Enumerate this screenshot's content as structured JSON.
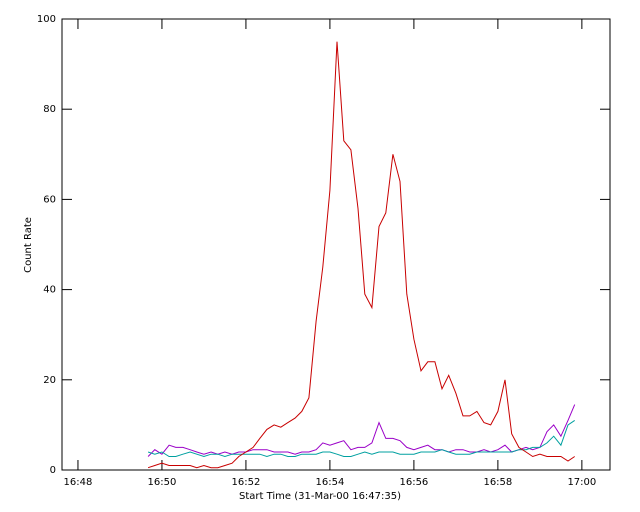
{
  "chart_data": {
    "type": "line",
    "xlabel": "Start Time (31-Mar-00 16:47:35)",
    "ylabel": "Count Rate",
    "x": [
      1.67,
      1.83,
      2,
      2.17,
      2.33,
      2.5,
      2.67,
      2.83,
      3,
      3.17,
      3.33,
      3.5,
      3.67,
      3.83,
      4,
      4.17,
      4.33,
      4.5,
      4.67,
      4.83,
      5,
      5.17,
      5.33,
      5.5,
      5.67,
      5.83,
      6,
      6.17,
      6.33,
      6.5,
      6.67,
      6.83,
      7,
      7.17,
      7.33,
      7.5,
      7.67,
      7.83,
      8,
      8.17,
      8.33,
      8.5,
      8.67,
      8.83,
      9,
      9.17,
      9.33,
      9.5,
      9.67,
      9.83,
      10,
      10.17,
      10.33,
      10.5,
      10.67,
      10.83,
      11,
      11.17,
      11.33,
      11.5,
      11.67,
      11.83
    ],
    "series": [
      {
        "color": "#9a00c8",
        "values": [
          3,
          4.5,
          3.5,
          5.5,
          5,
          5,
          4.5,
          4,
          3.5,
          4,
          3.5,
          4,
          3.5,
          4,
          4,
          4.5,
          4.5,
          4.5,
          4,
          4,
          4,
          3.5,
          4,
          4,
          4.5,
          6,
          5.5,
          6,
          6.5,
          4.5,
          5,
          5,
          6,
          10.5,
          7,
          7,
          6.5,
          5,
          4.5,
          5,
          5.5,
          4.5,
          4.5,
          4,
          4.5,
          4.5,
          4,
          4,
          4.5,
          4,
          4.5,
          5.5,
          4,
          4.5,
          5,
          4.5,
          5,
          8.5,
          10,
          7.5,
          11,
          14.5
        ]
      },
      {
        "color": "#00a0a0",
        "values": [
          4,
          3.5,
          4,
          3,
          3,
          3.5,
          4,
          3.5,
          3,
          3.5,
          3.5,
          3,
          3.5,
          3.5,
          3.5,
          3.5,
          3.5,
          3,
          3.5,
          3.5,
          3,
          3,
          3.5,
          3.5,
          3.5,
          4,
          4,
          3.5,
          3,
          3,
          3.5,
          4,
          3.5,
          4,
          4,
          4,
          3.5,
          3.5,
          3.5,
          4,
          4,
          4,
          4.5,
          4,
          3.5,
          3.5,
          3.5,
          4,
          4,
          4,
          4,
          4,
          4,
          4.5,
          4.5,
          5,
          5,
          6,
          7.5,
          5.5,
          10,
          11
        ]
      },
      {
        "color": "#c80000",
        "values": [
          0.5,
          1,
          1.5,
          1,
          1,
          1,
          1,
          0.5,
          1,
          0.5,
          0.5,
          1,
          1.5,
          3,
          4,
          5,
          7,
          9,
          10,
          9.5,
          10.5,
          11.5,
          13,
          16,
          33,
          45,
          62,
          95,
          73,
          71,
          58,
          39,
          36,
          54,
          57,
          70,
          64,
          39,
          29,
          22,
          24,
          24,
          18,
          21,
          17,
          12,
          12,
          13,
          10.5,
          10,
          13,
          20,
          8,
          5,
          4,
          3,
          3.5,
          3,
          3,
          3,
          2,
          3
        ]
      }
    ],
    "xlim": [
      -0.38,
      12.67
    ],
    "xticks": [
      {
        "value": 0,
        "label": "16:48"
      },
      {
        "value": 2,
        "label": "16:50"
      },
      {
        "value": 4,
        "label": "16:52"
      },
      {
        "value": 6,
        "label": "16:54"
      },
      {
        "value": 8,
        "label": "16:56"
      },
      {
        "value": 10,
        "label": "16:58"
      },
      {
        "value": 12,
        "label": "17:00"
      }
    ],
    "ylim": [
      0,
      100
    ],
    "yticks": [
      0,
      20,
      40,
      60,
      80,
      100
    ]
  }
}
